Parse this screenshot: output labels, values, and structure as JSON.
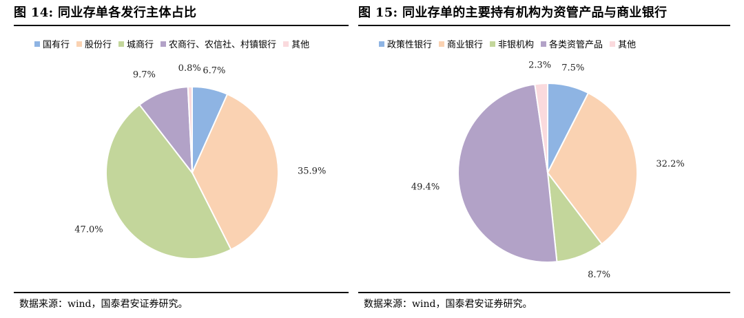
{
  "chart_data": [
    {
      "type": "pie",
      "title": "图 14:  同业存单各发行主体占比",
      "source": "数据来源：wind，国泰君安证券研究。",
      "legend_position": "top",
      "categories": [
        "国有行",
        "股份行",
        "城商行",
        "农商行、农信社、村镇银行",
        "其他"
      ],
      "values": [
        6.7,
        35.9,
        47.0,
        9.7,
        0.8
      ],
      "labels": [
        "6.7%",
        "35.9%",
        "47.0%",
        "9.7%",
        "0.8%"
      ],
      "colors": [
        "#8EB4E3",
        "#FAD2B2",
        "#C3D69B",
        "#B2A2C7",
        "#FADADD"
      ]
    },
    {
      "type": "pie",
      "title": "图 15:  同业存单的主要持有机构为资管产品与商业银行",
      "source": "数据来源：wind，国泰君安证券研究。",
      "legend_position": "top",
      "categories": [
        "政策性银行",
        "商业银行",
        "非银机构",
        "各类资管产品",
        "其他"
      ],
      "values": [
        7.5,
        32.2,
        8.7,
        49.4,
        2.3
      ],
      "labels": [
        "7.5%",
        "32.2%",
        "8.7%",
        "49.4%",
        "2.3%"
      ],
      "colors": [
        "#8EB4E3",
        "#FAD2B2",
        "#C3D69B",
        "#B2A2C7",
        "#FADADD"
      ]
    }
  ]
}
